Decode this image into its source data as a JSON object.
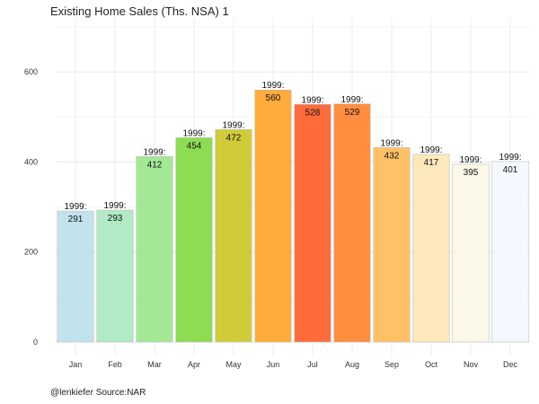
{
  "title": "Existing Home Sales (Ths. NSA) 1",
  "caption": "@lenkiefer Source:NAR",
  "chart_data": {
    "type": "bar",
    "title": "Existing Home Sales (Ths. NSA) 1",
    "xlabel": "",
    "ylabel": "",
    "categories": [
      "Jan",
      "Feb",
      "Mar",
      "Apr",
      "May",
      "Jun",
      "Jul",
      "Aug",
      "Sep",
      "Oct",
      "Nov",
      "Dec"
    ],
    "values": [
      291,
      293,
      412,
      454,
      472,
      560,
      528,
      529,
      432,
      417,
      395,
      401
    ],
    "top_labels": [
      "1999:",
      "1999:",
      "1999:",
      "1999:",
      "1999:",
      "1999:",
      "1999:",
      "1999:",
      "1999:",
      "1999:",
      "1999:",
      "1999:"
    ],
    "colors": [
      "#c3e3ec",
      "#b1eac5",
      "#a2e895",
      "#8edc52",
      "#d0cc39",
      "#ffac3c",
      "#ff6b3b",
      "#ff8e3e",
      "#ffc166",
      "#fde8bc",
      "#fbf8e8",
      "#f4f8ff"
    ],
    "ylim": [
      -30,
      720
    ],
    "yticks": [
      0,
      200,
      400,
      600
    ],
    "grid": true,
    "legend": "none"
  }
}
